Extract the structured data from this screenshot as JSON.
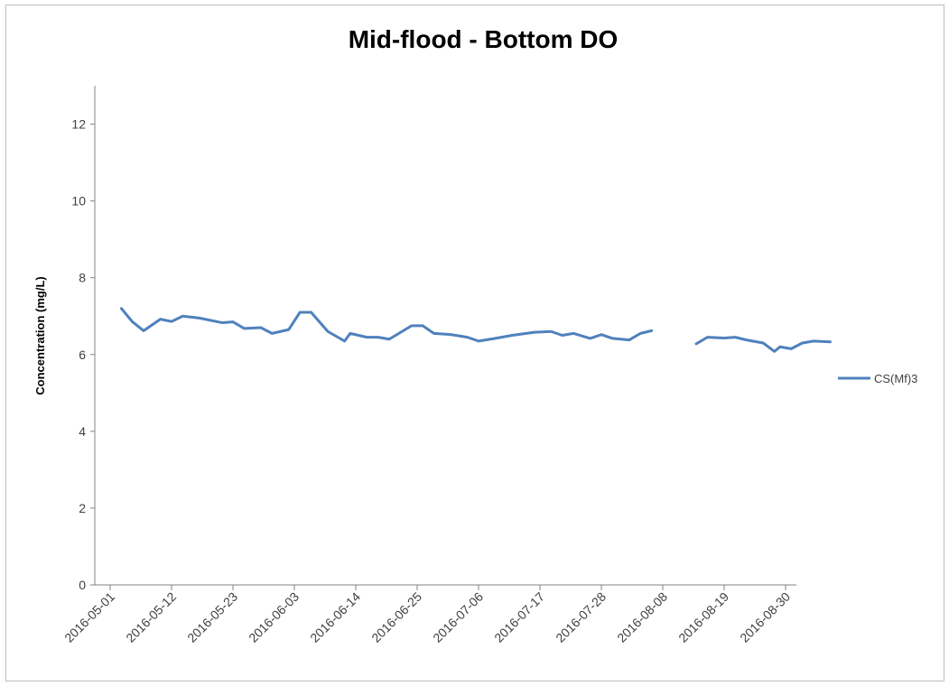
{
  "chart_data": {
    "type": "line",
    "title": "Mid-flood - Bottom DO",
    "ylabel": "Concentration (mg/L)",
    "xlabel": "",
    "ylim": [
      0,
      13
    ],
    "yticks": [
      0,
      2,
      4,
      6,
      8,
      10,
      12
    ],
    "xlim": [
      "2016-05-01",
      "2016-08-31"
    ],
    "xticks": [
      "2016-05-01",
      "2016-05-12",
      "2016-05-23",
      "2016-06-03",
      "2016-06-14",
      "2016-06-25",
      "2016-07-06",
      "2016-07-17",
      "2016-07-28",
      "2016-08-08",
      "2016-08-19",
      "2016-08-30"
    ],
    "grid": false,
    "legend_position": "right",
    "series_color": "#4f81bd",
    "series": [
      {
        "name": "CS(Mf)3",
        "points": [
          {
            "x": "2016-05-03",
            "y": 7.2
          },
          {
            "x": "2016-05-05",
            "y": 6.85
          },
          {
            "x": "2016-05-07",
            "y": 6.62
          },
          {
            "x": "2016-05-10",
            "y": 6.92
          },
          {
            "x": "2016-05-12",
            "y": 6.86
          },
          {
            "x": "2016-05-14",
            "y": 7.0
          },
          {
            "x": "2016-05-17",
            "y": 6.95
          },
          {
            "x": "2016-05-21",
            "y": 6.83
          },
          {
            "x": "2016-05-23",
            "y": 6.85
          },
          {
            "x": "2016-05-25",
            "y": 6.68
          },
          {
            "x": "2016-05-28",
            "y": 6.7
          },
          {
            "x": "2016-05-30",
            "y": 6.55
          },
          {
            "x": "2016-06-02",
            "y": 6.65
          },
          {
            "x": "2016-06-04",
            "y": 7.1
          },
          {
            "x": "2016-06-06",
            "y": 7.1
          },
          {
            "x": "2016-06-09",
            "y": 6.6
          },
          {
            "x": "2016-06-12",
            "y": 6.35
          },
          {
            "x": "2016-06-13",
            "y": 6.55
          },
          {
            "x": "2016-06-16",
            "y": 6.45
          },
          {
            "x": "2016-06-18",
            "y": 6.45
          },
          {
            "x": "2016-06-20",
            "y": 6.4
          },
          {
            "x": "2016-06-24",
            "y": 6.75
          },
          {
            "x": "2016-06-26",
            "y": 6.75
          },
          {
            "x": "2016-06-28",
            "y": 6.55
          },
          {
            "x": "2016-07-01",
            "y": 6.52
          },
          {
            "x": "2016-07-04",
            "y": 6.45
          },
          {
            "x": "2016-07-06",
            "y": 6.35
          },
          {
            "x": "2016-07-09",
            "y": 6.42
          },
          {
            "x": "2016-07-12",
            "y": 6.5
          },
          {
            "x": "2016-07-16",
            "y": 6.58
          },
          {
            "x": "2016-07-19",
            "y": 6.6
          },
          {
            "x": "2016-07-21",
            "y": 6.5
          },
          {
            "x": "2016-07-23",
            "y": 6.55
          },
          {
            "x": "2016-07-26",
            "y": 6.42
          },
          {
            "x": "2016-07-28",
            "y": 6.52
          },
          {
            "x": "2016-07-30",
            "y": 6.42
          },
          {
            "x": "2016-08-02",
            "y": 6.38
          },
          {
            "x": "2016-08-04",
            "y": 6.55
          },
          {
            "x": "2016-08-06",
            "y": 6.62
          },
          {
            "x": "2016-08-10",
            "y": null
          },
          {
            "x": "2016-08-14",
            "y": 6.28
          },
          {
            "x": "2016-08-16",
            "y": 6.45
          },
          {
            "x": "2016-08-19",
            "y": 6.43
          },
          {
            "x": "2016-08-21",
            "y": 6.45
          },
          {
            "x": "2016-08-23",
            "y": 6.38
          },
          {
            "x": "2016-08-26",
            "y": 6.3
          },
          {
            "x": "2016-08-28",
            "y": 6.08
          },
          {
            "x": "2016-08-29",
            "y": 6.2
          },
          {
            "x": "2016-08-31",
            "y": 6.15
          },
          {
            "x": "2016-09-02",
            "y": 6.3
          },
          {
            "x": "2016-09-04",
            "y": 6.35
          },
          {
            "x": "2016-09-07",
            "y": 6.33
          }
        ]
      }
    ]
  }
}
